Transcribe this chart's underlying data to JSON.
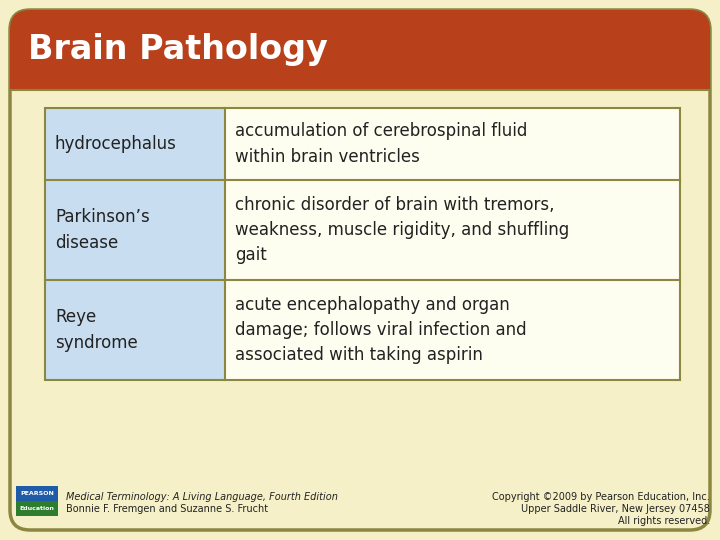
{
  "title": "Brain Pathology",
  "title_bg_color": "#B8401A",
  "title_text_color": "#FFFFFF",
  "bg_color": "#F5F0C8",
  "outer_border_color": "#8B8640",
  "table_border_color": "#8B8640",
  "cell_left_bg": "#C8DDEF",
  "cell_right_bg": "#FDFDF0",
  "rows": [
    {
      "term": "hydrocephalus",
      "definition": "accumulation of cerebrospinal fluid\nwithin brain ventricles"
    },
    {
      "term": "Parkinson’s\ndisease",
      "definition": "chronic disorder of brain with tremors,\nweakness, muscle rigidity, and shuffling\ngait"
    },
    {
      "term": "Reye\nsyndrome",
      "definition": "acute encephalopathy and organ\ndamage; follows viral infection and\nassociated with taking aspirin"
    }
  ],
  "footer_left_line1": "Medical Terminology: A Living Language, Fourth Edition",
  "footer_left_line2": "Bonnie F. Fremgen and Suzanne S. Frucht",
  "footer_right_line1": "Copyright ©2009 by Pearson Education, Inc.",
  "footer_right_line2": "Upper Saddle River, New Jersey 07458",
  "footer_right_line3": "All rights reserved.",
  "pearson_box_color1": "#1F5BA6",
  "pearson_box_color2": "#2E7D2E",
  "text_color": "#222222"
}
